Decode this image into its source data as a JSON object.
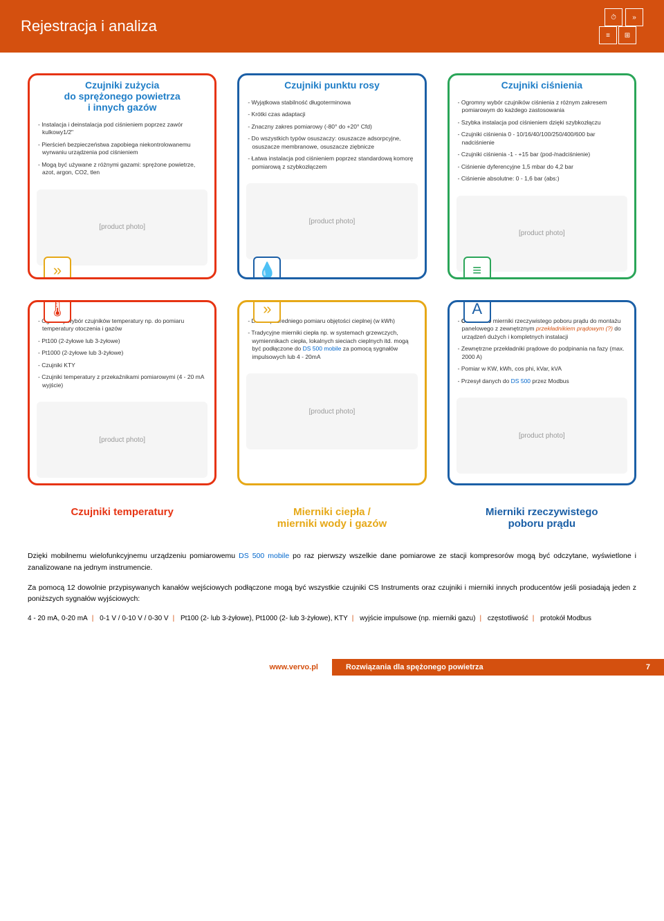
{
  "header": {
    "title": "Rejestracja i analiza"
  },
  "row1": {
    "cards": [
      {
        "title": "Czujniki zużycia\ndo sprężonego powietrza\ni innych gazów",
        "border": "#e63312",
        "icon_color": "#e6a817",
        "icon_glyph": "»",
        "bullets": [
          "- Instalacja i deinstalacja pod ciśnieniem poprzez zawór kulkowy1/2\"",
          "- Pierścień bezpieczeństwa zapobiega niekontrolowanemu wyrwaniu urządzenia pod ciśnieniem",
          "- Mogą być używane z różnymi gazami: sprężone powietrze, azot, argon, CO2, tlen"
        ]
      },
      {
        "title": "Czujniki punktu rosy",
        "border": "#1b5fa6",
        "icon_color": "#1b5fa6",
        "icon_glyph": "💧",
        "bullets": [
          "- Wyjątkowa stabilność długoterminowa",
          "- Krótki czas adaptacji",
          "- Znaczny zakres pomiarowy (-80° do +20° Cfd)",
          "- Do wszystkich typów osuszaczy: osuszacze adsorpcyjne, osuszacze membranowe, osuszacze ziębnicze",
          "- Łatwa instalacja pod ciśnieniem poprzez standardową komorę pomiarową z szybkozłączem"
        ]
      },
      {
        "title": "Czujniki ciśnienia",
        "border": "#2aa558",
        "icon_color": "#2aa558",
        "icon_glyph": "≡",
        "bullets": [
          "- Ogromny wybór czujników ciśnienia z różnym zakresem pomiarowym do każdego zastosowania",
          "- Szybka instalacja pod ciśnieniem dzięki szybkozłączu",
          "- Czujniki ciśnienia 0 - 10/16/40/100/250/400/600 bar nadciśnienie",
          "- Czujniki ciśnienia -1 - +15 bar (pod-/nadciśnienie)",
          "- Ciśnienie dyferencyjne 1,5 mbar do 4,2 bar",
          "- Ciśnienie absolutne: 0 - 1,6 bar (abs:)"
        ]
      }
    ]
  },
  "row2": {
    "cards": [
      {
        "border": "#e63312",
        "icon_color": "#e63312",
        "icon_glyph": "🌡",
        "bottom_title": "Czujniki temperatury",
        "bottom_title_color": "#e63312",
        "bullets": [
          "- Ogromny wybór czujników temperatury np. do pomiaru temperatury otoczenia i gazów",
          "- Pt100 (2-żyłowe lub 3-żyłowe)",
          "- Pt1000 (2-żyłowe lub 3-żyłowe)",
          "- Czujniki KTY",
          "- Czujniki temperatury z przekaźnikami pomiarowymi (4 - 20 mA wyjście)"
        ]
      },
      {
        "border": "#e6a817",
        "icon_color": "#e6a817",
        "icon_glyph": "»",
        "bottom_title": "Mierniki ciepła /\nmierniki wody i gazów",
        "bottom_title_color": "#e6a817",
        "bullets_html": [
          "- Do bezpośredniego pomiaru objętości cieplnej (w kWh)",
          "- Tradycyjne mierniki ciepła np. w systemach grzewczych, wymiennikach ciepła, lokalnych sieciach cieplnych itd. mogą być podłączone do <span class='blue-highlight'>DS 500 mobile</span> za pomocą sygnałów impulsowych lub 4 - 20mA"
        ]
      },
      {
        "border": "#1b5fa6",
        "icon_color": "#1b5fa6",
        "icon_glyph": "A",
        "bottom_title": "Mierniki rzeczywistego\npoboru prądu",
        "bottom_title_color": "#1b5fa6",
        "bullets_html": [
          "- <b>CS PM 710</b> mierniki rzeczywistego poboru prądu do montażu panelowego z zewnętrznym <span class='orange-highlight'>przekładnikiem prądowym (?)</span> do urządzeń dużych i kompletnych instalacji",
          "- Zewnętrzne przekładniki prądowe do podpinania na fazy (max. 2000 A)",
          "- Pomiar w KW, kWh, cos phi, kVar, kVA",
          "- Przesył danych do <span class='blue-highlight'>DS 500</span> przez Modbus"
        ]
      }
    ]
  },
  "description": {
    "p1_pre": "Dzięki mobilnemu wielofunkcyjnemu urządzeniu pomiarowemu ",
    "p1_highlight": "DS 500 mobile",
    "p1_post": " po raz pierwszy wszelkie dane pomiarowe ze stacji kompresorów mogą być odczytane, wyświetlone i zanalizowane na jednym instrumencie.",
    "p2": "Za pomocą 12 dowolnie przypisywanych kanałów wejściowych podłączone mogą być wszystkie czujniki CS Instruments oraz czujniki i mierniki innych producentów jeśli posiadają jeden z poniższych sygnałów wyjściowych:"
  },
  "signals": {
    "s1": "4 - 20 mA, 0-20 mA",
    "s2": "0-1 V / 0-10 V / 0-30 V",
    "s3": "Pt100 (2- lub 3-żyłowe), Pt1000 (2- lub 3-żyłowe), KTY",
    "s4": "wyjście impulsowe (np. mierniki gazu)",
    "s5": "częstotliwość",
    "s6": "protokół Modbus"
  },
  "footer": {
    "url": "www.vervo.pl",
    "tagline": "Rozwiązania dla spężonego powietrza",
    "page": "7"
  }
}
